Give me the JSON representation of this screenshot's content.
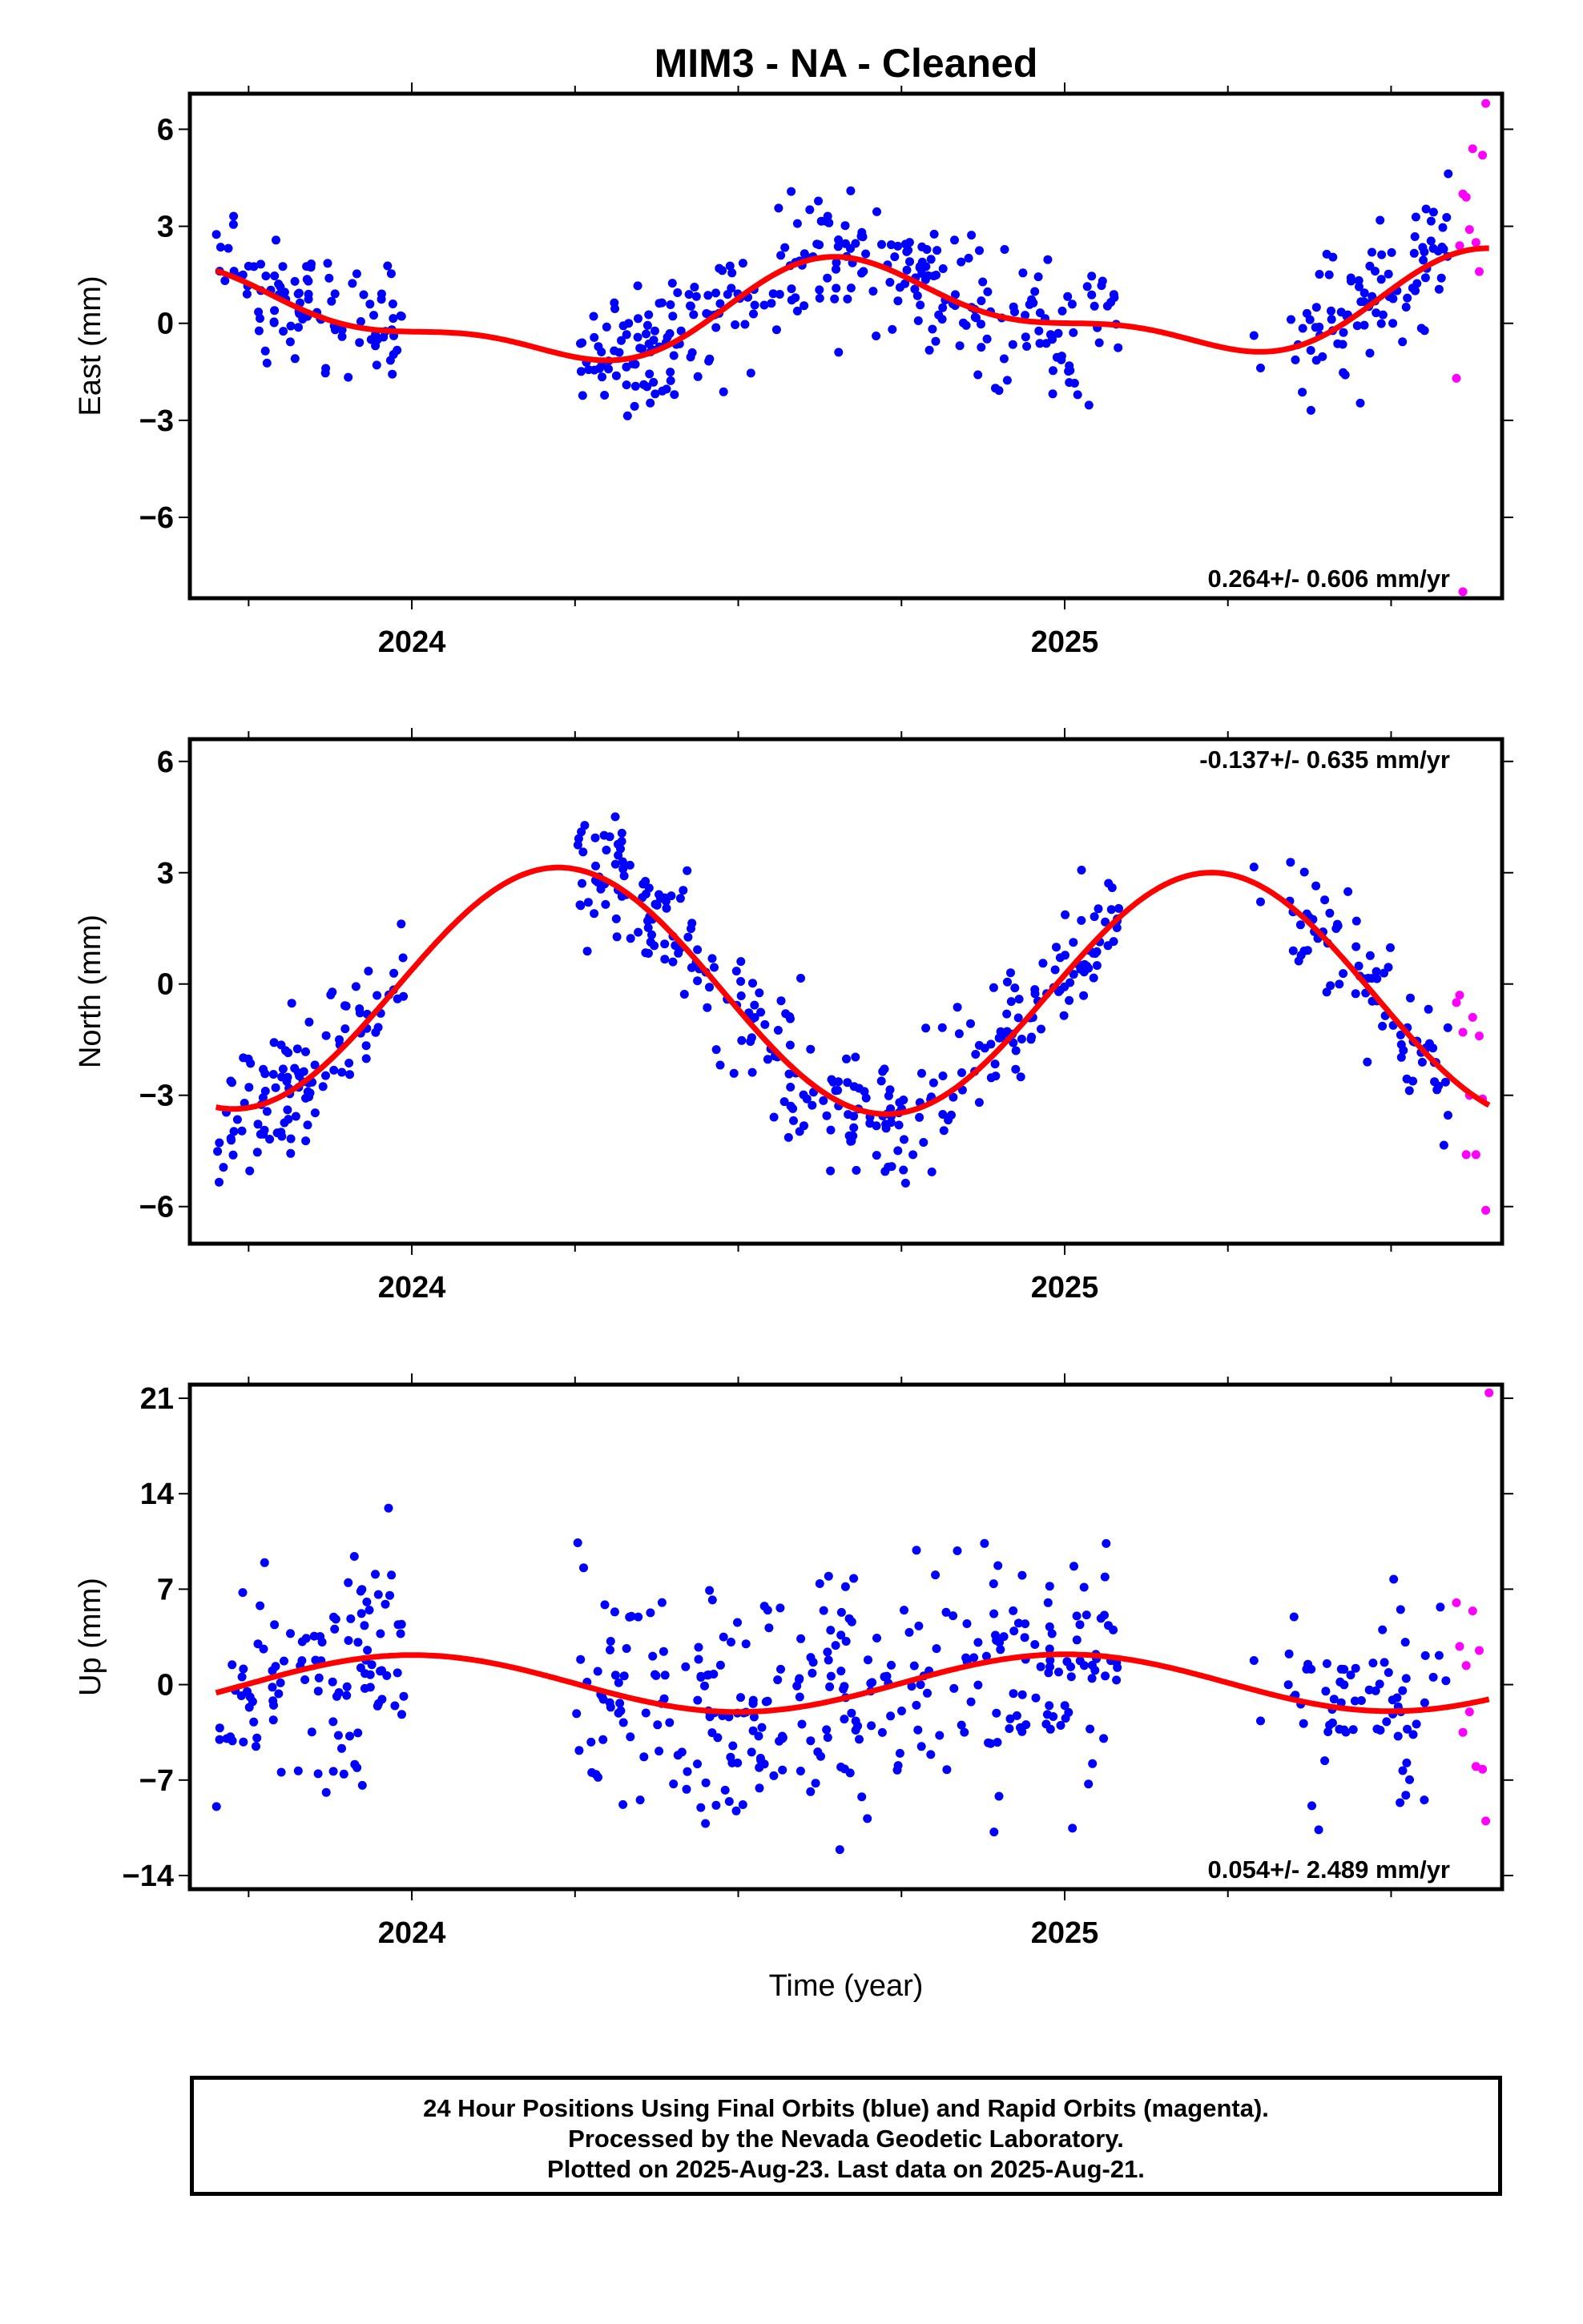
{
  "title": "MIM3  - NA - Cleaned",
  "xlabel": "Time (year)",
  "footer": [
    "24 Hour Positions Using Final Orbits (blue) and Rapid Orbits (magenta).",
    "Processed by the Nevada Geodetic Laboratory.",
    "Plotted on 2025-Aug-23. Last data on 2025-Aug-21."
  ],
  "colors": {
    "final": "#0000ff",
    "rapid": "#ff00ff",
    "model": "#ff0000"
  },
  "chart_data": [
    {
      "type": "scatter",
      "ylabel": "East (mm)",
      "rate": "0.264+/- 0.606 mm/yr",
      "rate_position": "bottom-right",
      "xlim": [
        2023.66,
        2025.67
      ],
      "ylim": [
        -8.5,
        7.1
      ],
      "yticks": [
        6,
        3,
        0,
        -3,
        -6
      ],
      "ytick_labels": [
        "6",
        "3",
        "0",
        "−3",
        "−6"
      ],
      "xticks": [
        2024,
        2025
      ],
      "xtick_labels": [
        "2024",
        "2025"
      ],
      "gaps": [
        [
          2023.99,
          2024.25
        ],
        [
          2025.09,
          2025.34
        ]
      ],
      "seed": 11,
      "final_points": 480,
      "noise": 1.0,
      "model": {
        "offset": 0.3,
        "trend": 0.264,
        "ref": 2024.6,
        "a1": -0.45,
        "b1": -1.2,
        "a2": 0.05,
        "b2": 0.55,
        "pt": 0.8
      },
      "rapid": [
        [
          2025.6,
          -1.7
        ],
        [
          2025.605,
          2.4
        ],
        [
          2025.61,
          4.0
        ],
        [
          2025.615,
          3.9
        ],
        [
          2025.62,
          2.9
        ],
        [
          2025.625,
          5.4
        ],
        [
          2025.63,
          2.5
        ],
        [
          2025.635,
          1.6
        ],
        [
          2025.64,
          5.2
        ],
        [
          2025.645,
          6.8
        ],
        [
          2025.61,
          -8.3
        ]
      ]
    },
    {
      "type": "scatter",
      "ylabel": "North (mm)",
      "rate": "-0.137+/- 0.635 mm/yr",
      "rate_position": "top-right",
      "xlim": [
        2023.66,
        2025.67
      ],
      "ylim": [
        -7.0,
        6.6
      ],
      "yticks": [
        6,
        3,
        0,
        -3,
        -6
      ],
      "ytick_labels": [
        "6",
        "3",
        "0",
        "−3",
        "−6"
      ],
      "xticks": [
        2024,
        2025
      ],
      "xtick_labels": [
        "2024",
        "2025"
      ],
      "gaps": [
        [
          2023.99,
          2024.25
        ],
        [
          2025.09,
          2025.34
        ]
      ],
      "seed": 23,
      "final_points": 480,
      "noise": 0.85,
      "model": {
        "offset": -0.2,
        "trend": -0.137,
        "ref": 2024.6,
        "a1": 0.5,
        "b1": 3.25,
        "a2": 0.0,
        "b2": 0.0,
        "pt": 0.8
      },
      "rapid": [
        [
          2025.6,
          -0.5
        ],
        [
          2025.605,
          -0.3
        ],
        [
          2025.61,
          -1.3
        ],
        [
          2025.615,
          -4.6
        ],
        [
          2025.62,
          -3.0
        ],
        [
          2025.625,
          -0.9
        ],
        [
          2025.63,
          -4.6
        ],
        [
          2025.635,
          -1.4
        ],
        [
          2025.64,
          -3.1
        ],
        [
          2025.645,
          -6.1
        ]
      ]
    },
    {
      "type": "scatter",
      "ylabel": "Up (mm)",
      "rate": "0.054+/- 2.489 mm/yr",
      "rate_position": "bottom-right",
      "xlim": [
        2023.66,
        2025.67
      ],
      "ylim": [
        -15,
        22
      ],
      "yticks": [
        21,
        14,
        7,
        0,
        -7,
        -14
      ],
      "ytick_labels": [
        "21",
        "14",
        "7",
        "0",
        "−7",
        "−14"
      ],
      "xticks": [
        2024,
        2025
      ],
      "xtick_labels": [
        "2024",
        "2025"
      ],
      "gaps": [
        [
          2023.99,
          2024.25
        ],
        [
          2025.09,
          2025.34
        ]
      ],
      "seed": 37,
      "final_points": 480,
      "noise": 4.3,
      "model": {
        "offset": 0.1,
        "trend": 0.054,
        "ref": 2024.6,
        "a1": 2.1,
        "b1": 0.0,
        "a2": 0.0,
        "b2": 0.0,
        "pt": 0.8
      },
      "rapid": [
        [
          2025.6,
          6.0
        ],
        [
          2025.605,
          2.8
        ],
        [
          2025.61,
          -3.5
        ],
        [
          2025.615,
          1.4
        ],
        [
          2025.62,
          -2.0
        ],
        [
          2025.625,
          5.4
        ],
        [
          2025.63,
          -6.0
        ],
        [
          2025.635,
          2.5
        ],
        [
          2025.64,
          -6.2
        ],
        [
          2025.645,
          -10.0
        ],
        [
          2025.65,
          21.4
        ]
      ]
    }
  ]
}
